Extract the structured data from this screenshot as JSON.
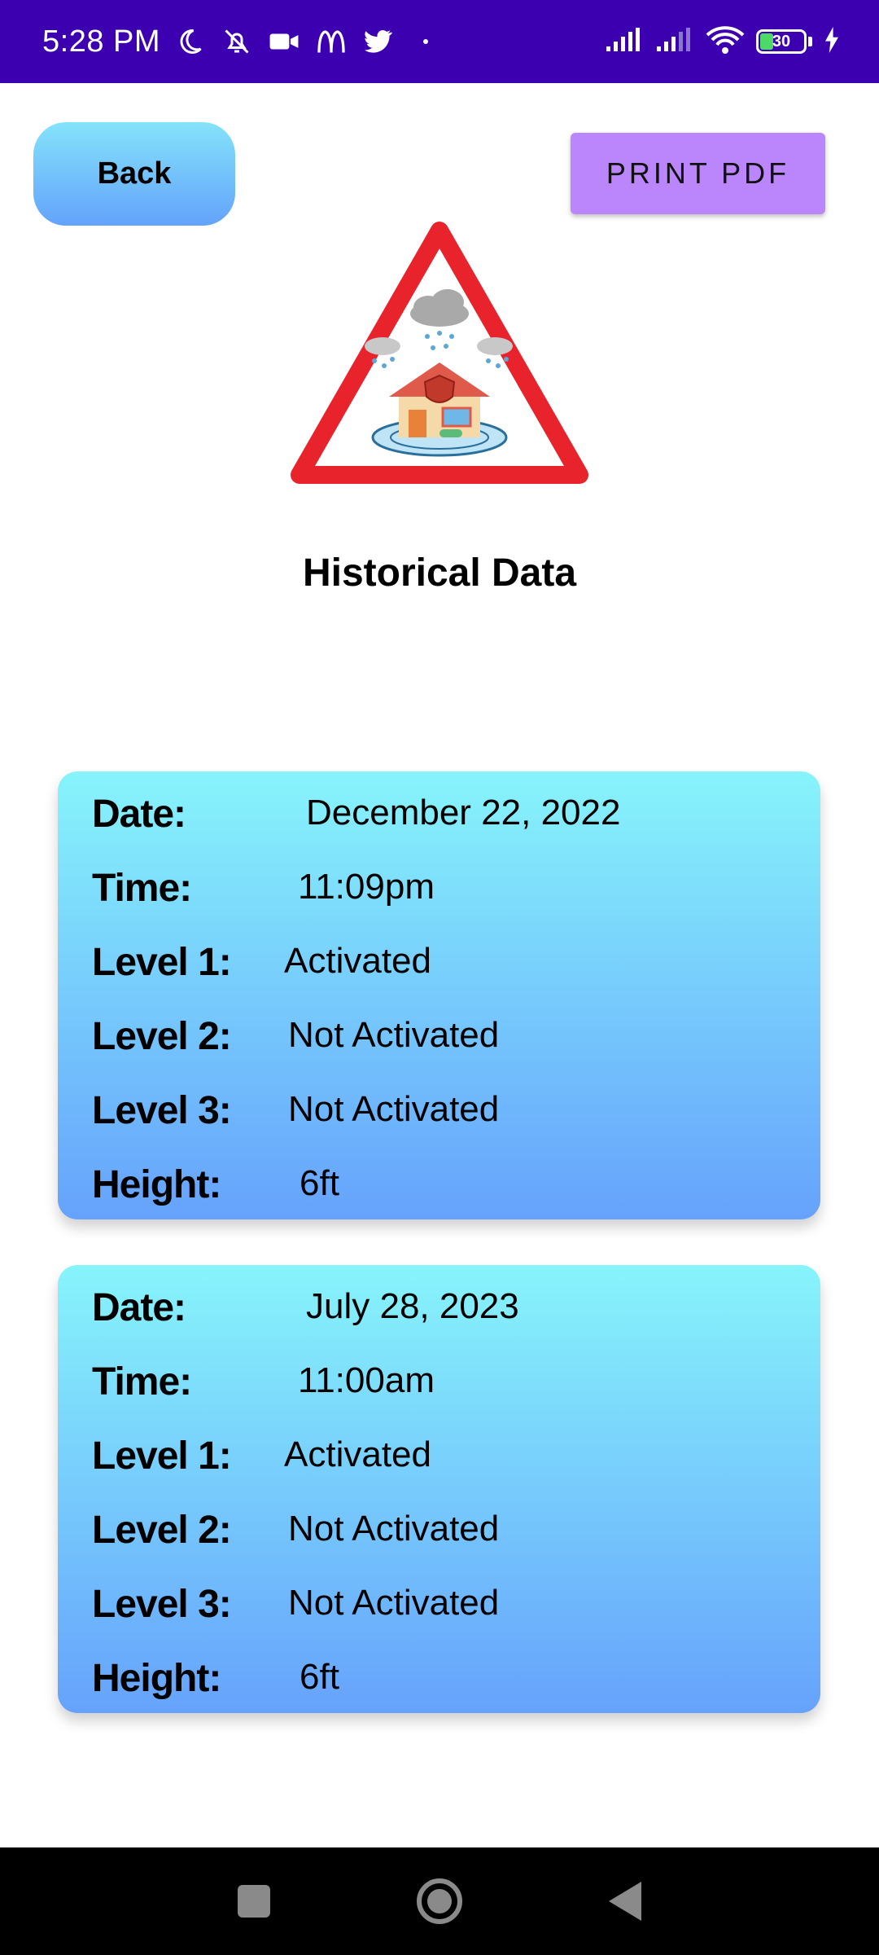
{
  "status_bar": {
    "time": "5:28 PM",
    "battery_level": "30",
    "left_icons": [
      "moon-icon",
      "bell-off-icon",
      "video-icon",
      "mcdonalds-icon",
      "twitter-icon",
      "dot-icon"
    ],
    "right_icons": [
      "signal-icon",
      "signal-icon",
      "wifi-icon",
      "battery-icon",
      "charging-icon"
    ]
  },
  "header": {
    "back_label": "Back",
    "print_label": "PRINT PDF"
  },
  "logo_icon": "flood-warning-icon",
  "page_title": "Historical Data",
  "labels": {
    "date": "Date:",
    "time": "Time:",
    "level1": "Level 1:",
    "level2": "Level 2:",
    "level3": "Level 3:",
    "height": "Height:"
  },
  "records": [
    {
      "date": "December 22, 2022",
      "time": "11:09pm",
      "level1": "Activated",
      "level2": "Not Activated",
      "level3": "Not Activated",
      "height": "6ft"
    },
    {
      "date": "July 28, 2023",
      "time": "11:00am",
      "level1": "Activated",
      "level2": "Not Activated",
      "level3": "Not Activated",
      "height": "6ft"
    }
  ],
  "colors": {
    "status_bar": "#3d00b0",
    "print_button": "#bb86fc",
    "card_top": "#87f4fb",
    "card_bottom": "#66a2fc",
    "warning_red": "#e8232c"
  }
}
